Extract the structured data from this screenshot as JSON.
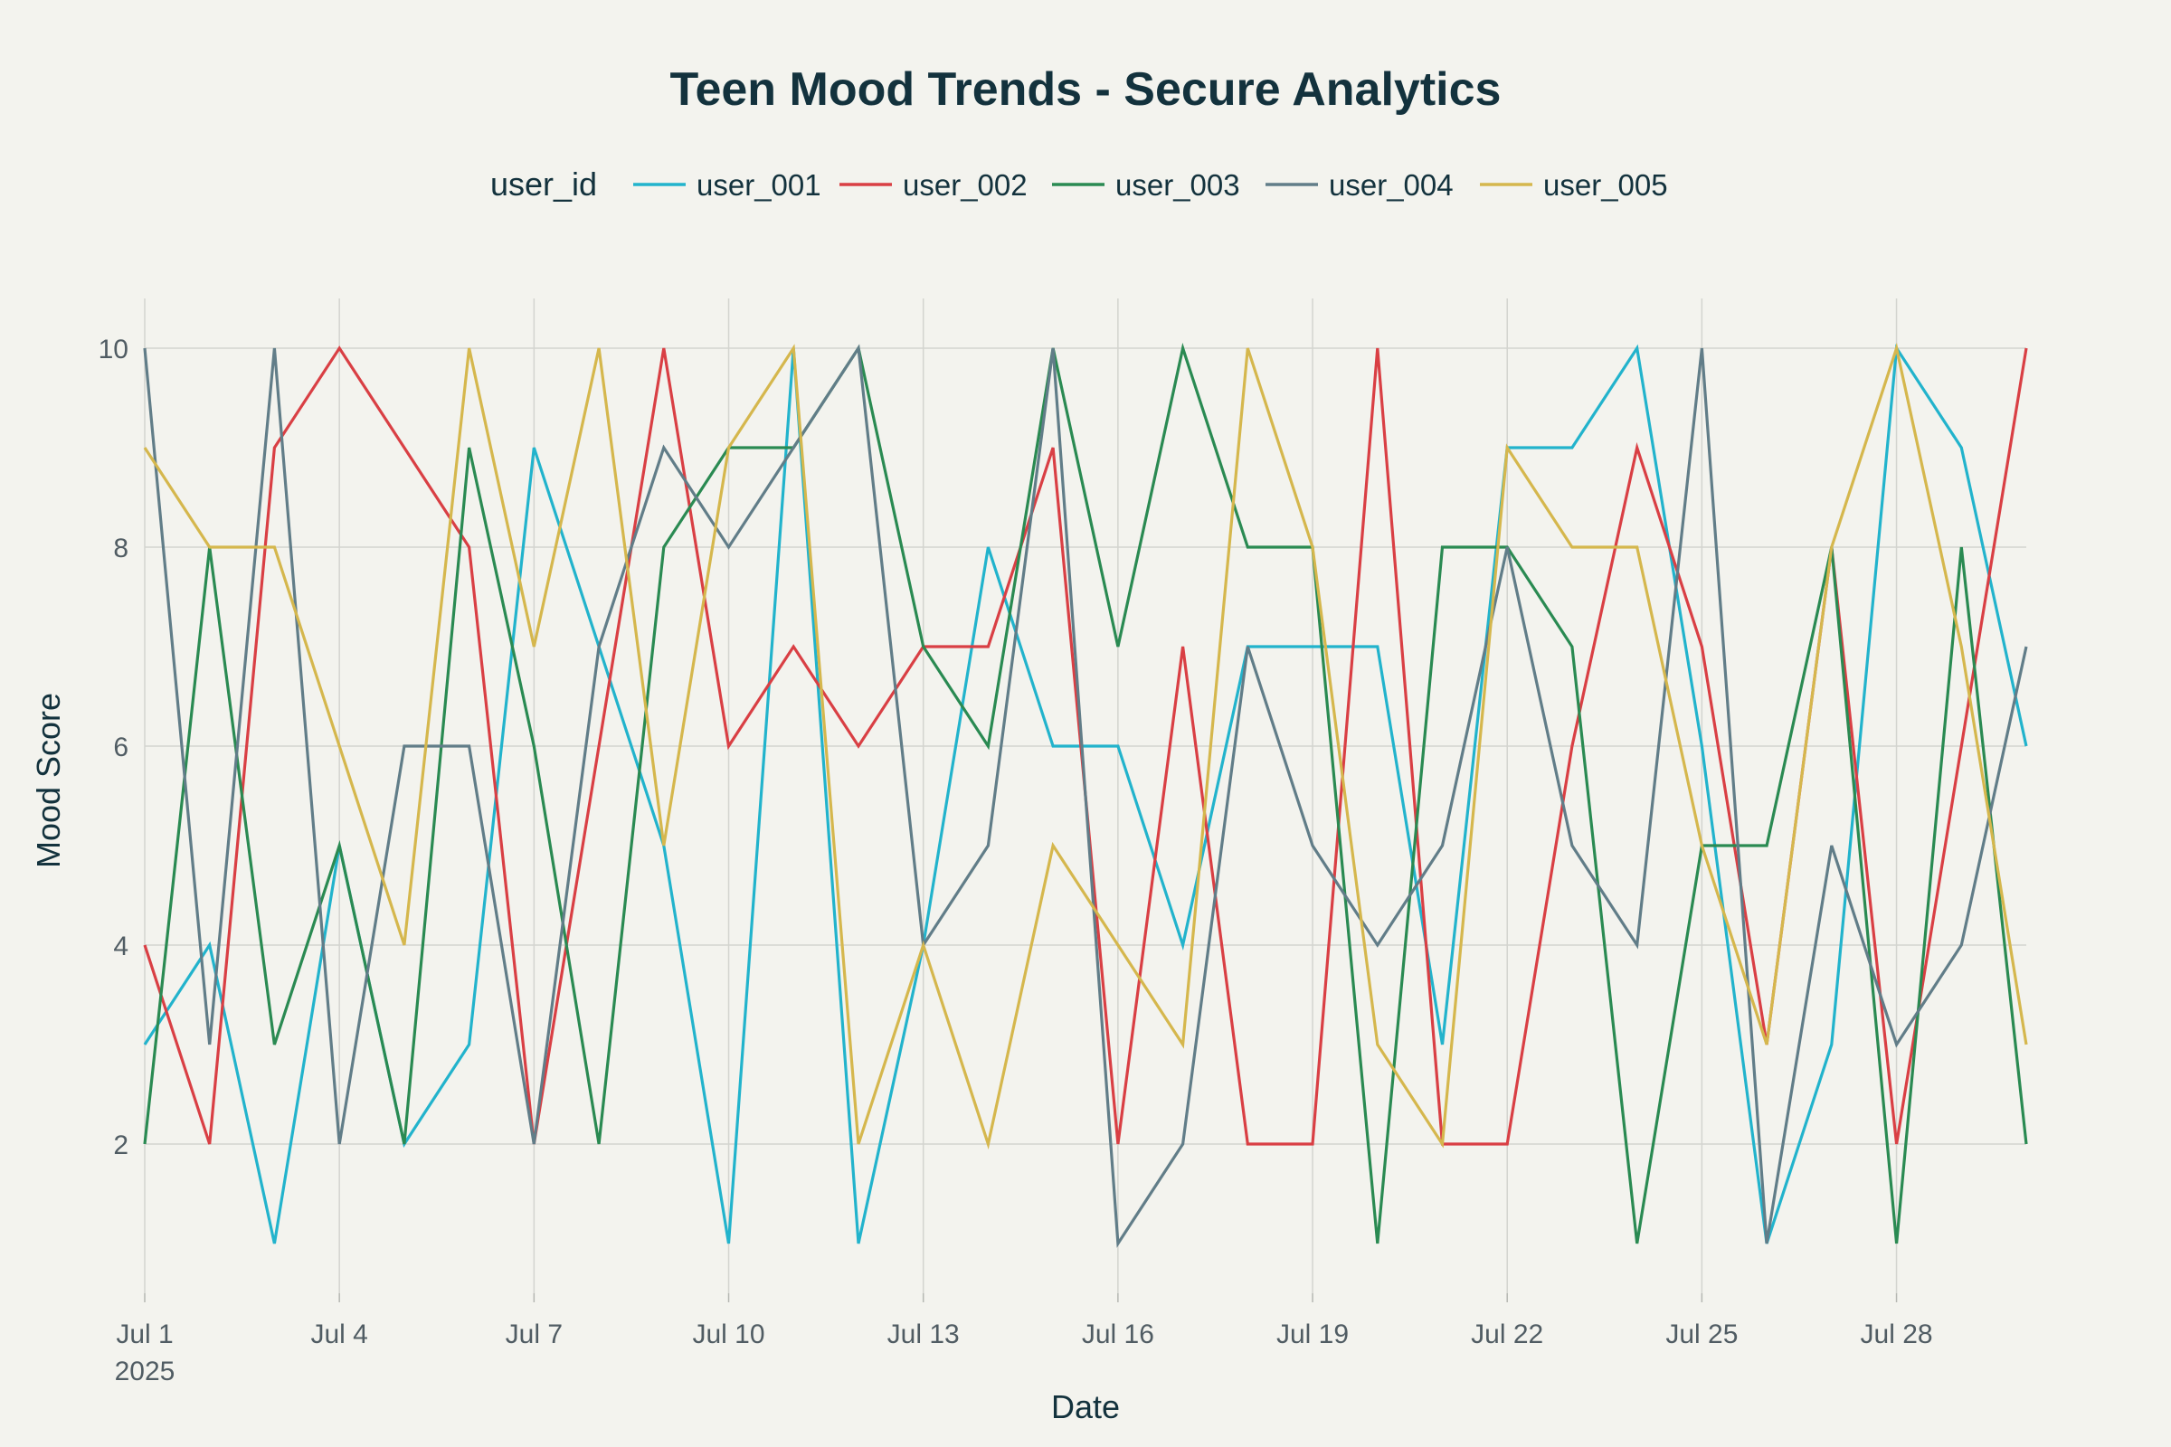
{
  "chart_data": {
    "type": "line",
    "title": "Teen Mood Trends - Secure Analytics",
    "xlabel": "Date",
    "ylabel": "Mood Score",
    "legend_title": "user_id",
    "legend_position": "top",
    "grid": true,
    "xlim": [
      "2025-07-01",
      "2025-07-30"
    ],
    "ylim": [
      0.5,
      10.5
    ],
    "y_ticks": [
      2,
      4,
      6,
      8,
      10
    ],
    "x_ticks": [
      {
        "date": "2025-07-01",
        "label": "Jul 1",
        "sublabel": "2025"
      },
      {
        "date": "2025-07-04",
        "label": "Jul 4"
      },
      {
        "date": "2025-07-07",
        "label": "Jul 7"
      },
      {
        "date": "2025-07-10",
        "label": "Jul 10"
      },
      {
        "date": "2025-07-13",
        "label": "Jul 13"
      },
      {
        "date": "2025-07-16",
        "label": "Jul 16"
      },
      {
        "date": "2025-07-19",
        "label": "Jul 19"
      },
      {
        "date": "2025-07-22",
        "label": "Jul 22"
      },
      {
        "date": "2025-07-25",
        "label": "Jul 25"
      },
      {
        "date": "2025-07-28",
        "label": "Jul 28"
      }
    ],
    "x": [
      "2025-07-01",
      "2025-07-02",
      "2025-07-03",
      "2025-07-04",
      "2025-07-05",
      "2025-07-06",
      "2025-07-07",
      "2025-07-08",
      "2025-07-09",
      "2025-07-10",
      "2025-07-11",
      "2025-07-12",
      "2025-07-13",
      "2025-07-14",
      "2025-07-15",
      "2025-07-16",
      "2025-07-17",
      "2025-07-18",
      "2025-07-19",
      "2025-07-20",
      "2025-07-21",
      "2025-07-22",
      "2025-07-23",
      "2025-07-24",
      "2025-07-25",
      "2025-07-26",
      "2025-07-27",
      "2025-07-28",
      "2025-07-29",
      "2025-07-30"
    ],
    "series": [
      {
        "name": "user_001",
        "color": "#22b3cc",
        "values": [
          3,
          4,
          1,
          5,
          2,
          3,
          9,
          7,
          5,
          1,
          10,
          1,
          4,
          8,
          6,
          6,
          4,
          7,
          7,
          7,
          3,
          9,
          9,
          10,
          6,
          1,
          3,
          10,
          9,
          6
        ]
      },
      {
        "name": "user_002",
        "color": "#d93f44",
        "values": [
          4,
          2,
          9,
          10,
          9,
          8,
          2,
          6,
          10,
          6,
          7,
          6,
          7,
          7,
          9,
          2,
          7,
          2,
          2,
          10,
          2,
          2,
          6,
          9,
          7,
          3,
          8,
          2,
          6,
          10
        ]
      },
      {
        "name": "user_003",
        "color": "#2a8a52",
        "values": [
          2,
          8,
          3,
          5,
          2,
          9,
          6,
          2,
          8,
          9,
          9,
          10,
          7,
          6,
          10,
          7,
          10,
          8,
          8,
          1,
          8,
          8,
          7,
          1,
          5,
          5,
          8,
          1,
          8,
          2
        ]
      },
      {
        "name": "user_004",
        "color": "#617d88",
        "values": [
          10,
          3,
          10,
          2,
          6,
          6,
          2,
          7,
          9,
          8,
          9,
          10,
          4,
          5,
          10,
          1,
          2,
          7,
          5,
          4,
          5,
          8,
          5,
          4,
          10,
          1,
          5,
          3,
          4,
          7
        ]
      },
      {
        "name": "user_005",
        "color": "#d5b74d",
        "values": [
          9,
          8,
          8,
          6,
          4,
          10,
          7,
          10,
          5,
          9,
          10,
          2,
          4,
          2,
          5,
          4,
          3,
          10,
          8,
          3,
          2,
          9,
          8,
          8,
          5,
          3,
          8,
          10,
          7,
          3
        ]
      }
    ]
  }
}
